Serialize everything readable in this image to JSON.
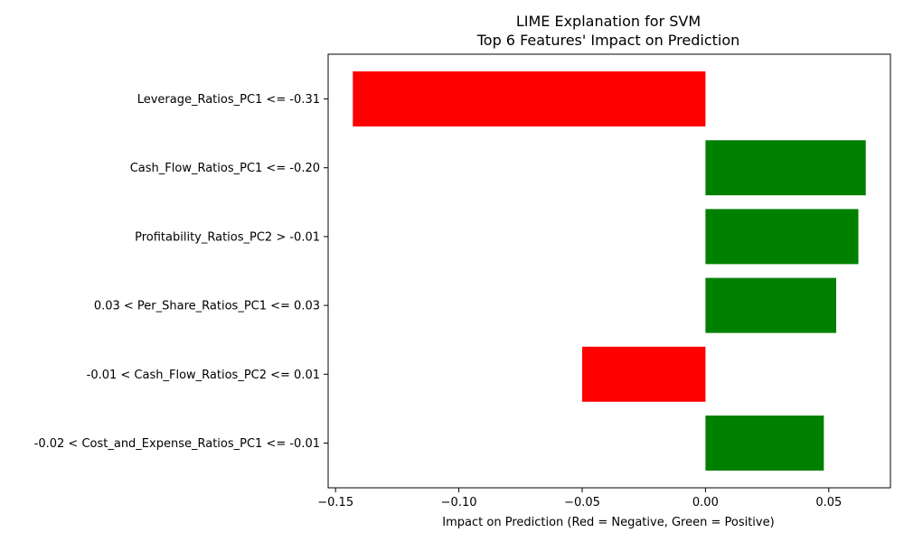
{
  "chart_data": {
    "type": "bar",
    "orientation": "horizontal",
    "title": "LIME Explanation for SVM\nTop 6 Features' Impact on Prediction",
    "title_lines": [
      "LIME Explanation for SVM",
      "Top 6 Features' Impact on Prediction"
    ],
    "xlabel": "Impact on Prediction (Red = Negative, Green = Positive)",
    "ylabel": "",
    "xlim": [
      -0.153,
      0.075
    ],
    "xticks": [
      -0.15,
      -0.1,
      -0.05,
      0.0,
      0.05
    ],
    "xtick_labels": [
      "−0.15",
      "−0.10",
      "−0.05",
      "0.00",
      "0.05"
    ],
    "categories": [
      "Leverage_Ratios_PC1 <= -0.31",
      "Cash_Flow_Ratios_PC1 <= -0.20",
      "Profitability_Ratios_PC2 > -0.01",
      "0.03 < Per_Share_Ratios_PC1 <= 0.03",
      "-0.01 < Cash_Flow_Ratios_PC2 <= 0.01",
      "-0.02 < Cost_and_Expense_Ratios_PC1 <= -0.01"
    ],
    "values": [
      -0.143,
      0.065,
      0.062,
      0.053,
      -0.05,
      0.048
    ],
    "colors": {
      "negative": "#ff0000",
      "positive": "#008000"
    },
    "grid": false,
    "legend": "none"
  }
}
